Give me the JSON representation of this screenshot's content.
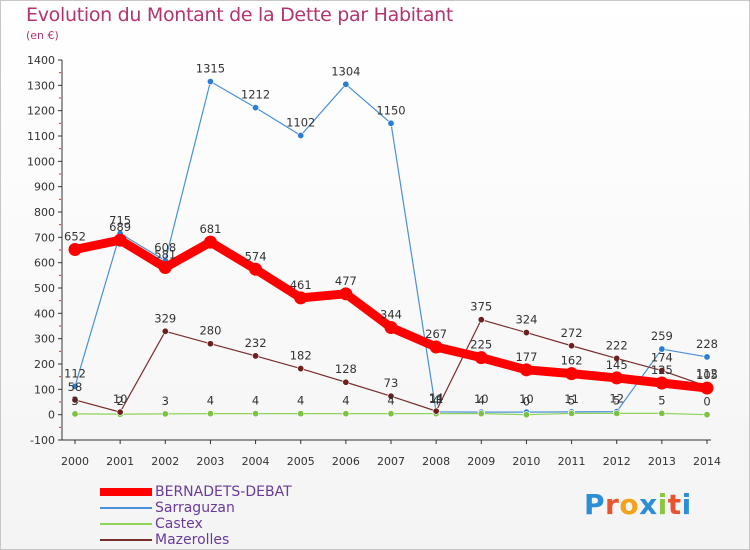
{
  "header": {
    "title": "Evolution du Montant de la Dette par Habitant",
    "unit": "(en €)"
  },
  "logo": {
    "text": "Proxiti",
    "letters": [
      {
        "char": "P",
        "color": "#2b8fd6"
      },
      {
        "char": "r",
        "color": "#e8542e"
      },
      {
        "char": "o",
        "color": "#f2a21b"
      },
      {
        "char": "x",
        "color": "#2b8fd6"
      },
      {
        "char": "i",
        "color": "#8cc63f"
      },
      {
        "char": "t",
        "color": "#e8542e"
      },
      {
        "char": "i",
        "color": "#2b8fd6"
      }
    ]
  },
  "chart_data": {
    "type": "line",
    "title": "Evolution du Montant de la Dette par Habitant",
    "subtitle": "(en €)",
    "x": [
      2000,
      2001,
      2002,
      2003,
      2004,
      2005,
      2006,
      2007,
      2008,
      2009,
      2010,
      2011,
      2012,
      2013,
      2014
    ],
    "ylim": [
      -100,
      1400
    ],
    "yticks": [
      -100,
      0,
      100,
      200,
      300,
      400,
      500,
      600,
      700,
      800,
      900,
      1000,
      1100,
      1200,
      1300,
      1400
    ],
    "grid": false,
    "legend_position": "bottom-left",
    "series": [
      {
        "name": "BERNADETS-DEBAT",
        "color": "#ff0000",
        "point_color": "#ff0000",
        "emphasis": true,
        "values": [
          652,
          689,
          581,
          681,
          574,
          461,
          477,
          344,
          267,
          225,
          177,
          162,
          145,
          125,
          105
        ],
        "labels": [
          "652",
          "689",
          "581",
          "681",
          "574",
          "461",
          "477",
          "344",
          "267",
          "225",
          "177",
          "162",
          "145",
          "125",
          "105"
        ]
      },
      {
        "name": "Sarraguzan",
        "color": "#4a90d9",
        "point_color": "#2a7fd4",
        "emphasis": false,
        "values": [
          112,
          715,
          608,
          1315,
          1212,
          1102,
          1304,
          1150,
          11,
          10,
          10,
          11,
          12,
          259,
          228
        ],
        "labels": [
          "112",
          "715",
          "608",
          "1315",
          "1212",
          "1102",
          "1304",
          "1150",
          "11",
          "10",
          "10",
          "11",
          "12",
          "259",
          "228"
        ]
      },
      {
        "name": "Castex",
        "color": "#8fd35a",
        "point_color": "#7cc244",
        "emphasis": false,
        "values": [
          3,
          2,
          3,
          4,
          4,
          4,
          4,
          4,
          4,
          4,
          0,
          5,
          5,
          5,
          0
        ],
        "labels": [
          "3",
          "2",
          "3",
          "4",
          "4",
          "4",
          "4",
          "4",
          "4",
          "4",
          "0",
          "5",
          "5",
          "5",
          "0"
        ]
      },
      {
        "name": "Mazerolles",
        "color": "#7a2d2d",
        "point_color": "#6b1f1f",
        "emphasis": false,
        "values": [
          58,
          10,
          329,
          280,
          232,
          182,
          128,
          73,
          14,
          375,
          324,
          272,
          222,
          174,
          112
        ],
        "labels": [
          "58",
          "10",
          "329",
          "280",
          "232",
          "182",
          "128",
          "73",
          "14",
          "375",
          "324",
          "272",
          "222",
          "174",
          "112"
        ]
      }
    ]
  }
}
